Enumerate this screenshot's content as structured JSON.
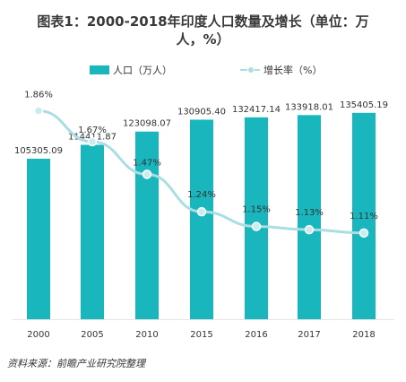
{
  "chart_data": {
    "type": "bar",
    "title_line1": "图表1：2000-2018年印度人口数量及增长（单位：万",
    "title_line2": "人，%）",
    "categories": [
      "2000",
      "2005",
      "2010",
      "2015",
      "2016",
      "2017",
      "2018"
    ],
    "series": [
      {
        "name": "人口（万人）",
        "type": "bar",
        "color": "#19b6bd",
        "values": [
          105305.09,
          114411.87,
          123098.07,
          130905.4,
          132417.14,
          133918.01,
          135405.19
        ],
        "labels": [
          "105305.09",
          "114411.87",
          "123098.07",
          "130905.40",
          "132417.14",
          "133918.01",
          "135405.19"
        ]
      },
      {
        "name": "增长率（%）",
        "type": "line",
        "color": "#a9dee2",
        "values": [
          1.86,
          1.67,
          1.47,
          1.24,
          1.15,
          1.13,
          1.11
        ],
        "labels": [
          "1.86%",
          "1.67%",
          "1.47%",
          "1.24%",
          "1.15%",
          "1.13%",
          "1.11%"
        ]
      }
    ],
    "ylim_bar": [
      0,
      140000
    ],
    "ylim_line": [
      0.9,
      2.0
    ],
    "legend_position": "top-center",
    "grid": false
  },
  "source": "资料来源：前瞻产业研究院整理"
}
